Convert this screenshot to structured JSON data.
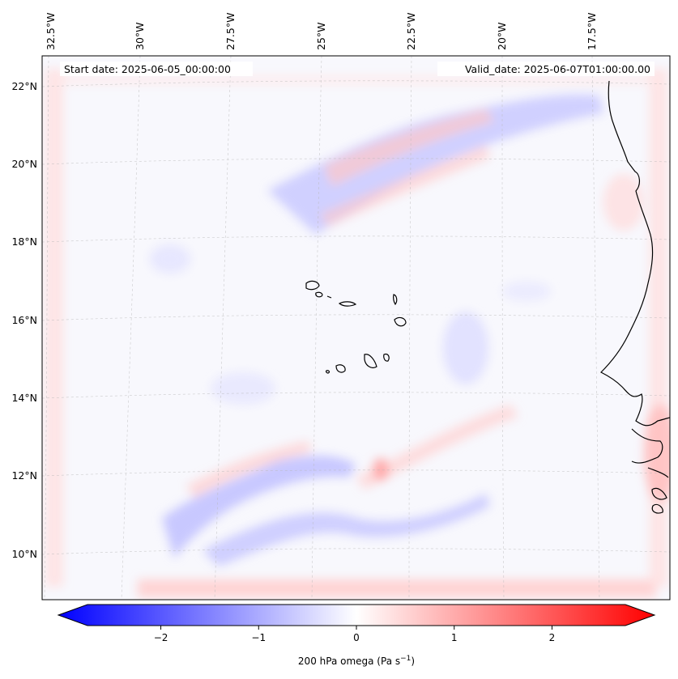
{
  "map": {
    "start_label": "Start date: 2025-06-05_00:00:00",
    "valid_label": "Valid_date: 2025-06-07T01:00:00.00",
    "lon_ticks": [
      "32.5°W",
      "30°W",
      "27.5°W",
      "25°W",
      "22.5°W",
      "20°W",
      "17.5°W"
    ],
    "lat_ticks": [
      "22°N",
      "20°N",
      "18°N",
      "16°N",
      "14°N",
      "12°N",
      "10°N"
    ],
    "field": "200 hPa omega",
    "colormap": [
      "#0000ff",
      "#ffffff",
      "#ff0000"
    ],
    "coastline_color": "#000000"
  },
  "colorbar": {
    "label_main": "200 hPa omega (Pa s",
    "label_sup": "−1",
    "label_close": ")",
    "ticks": [
      "−2",
      "−1",
      "0",
      "1",
      "2"
    ],
    "tick_values": [
      -2,
      -1,
      0,
      1,
      2
    ],
    "min": -2.75,
    "max": 2.75,
    "extend": "both"
  }
}
